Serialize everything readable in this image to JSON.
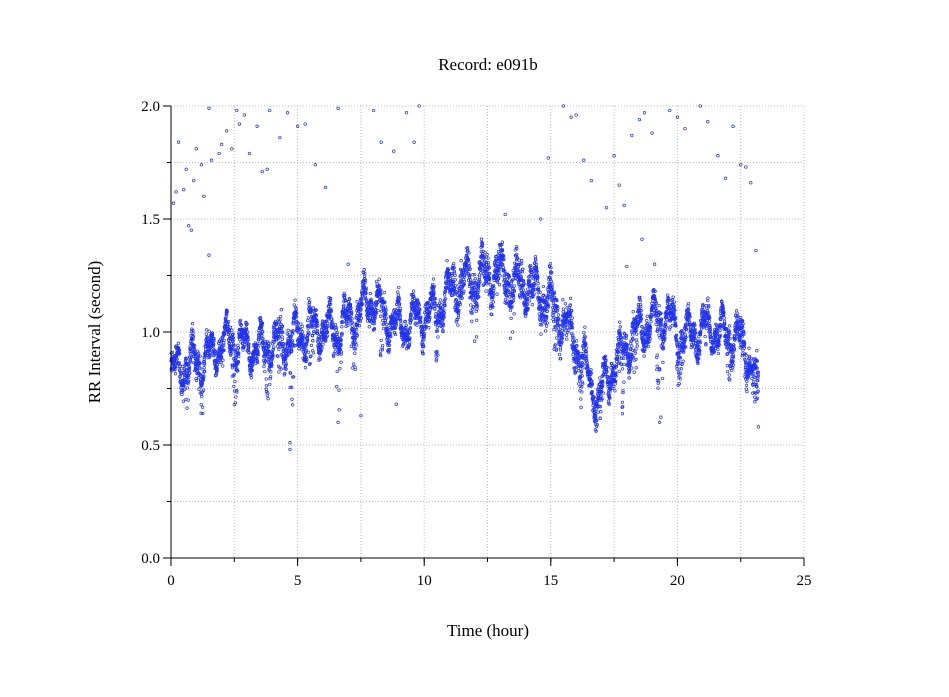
{
  "chart_data": {
    "type": "scatter",
    "title": "Record:  e091b",
    "xlabel": "Time (hour)",
    "ylabel": "RR Interval (second)",
    "xlim": [
      0,
      25
    ],
    "ylim": [
      0.0,
      2.0
    ],
    "x_ticks": [
      0,
      5,
      10,
      15,
      20,
      25
    ],
    "x_tick_labels": [
      "0",
      "5",
      "10",
      "15",
      "20",
      "25"
    ],
    "y_ticks": [
      0.0,
      0.5,
      1.0,
      1.5,
      2.0
    ],
    "y_tick_labels": [
      "0.0",
      "0.5",
      "1.0",
      "1.5",
      "2.0"
    ],
    "grid": true,
    "series_color": "#2233ee",
    "x_end": 23.2,
    "trend": [
      [
        0.0,
        0.82
      ],
      [
        0.5,
        0.85
      ],
      [
        1.0,
        0.87
      ],
      [
        1.5,
        0.89
      ],
      [
        2.0,
        0.95
      ],
      [
        2.5,
        0.97
      ],
      [
        3.0,
        0.92
      ],
      [
        3.5,
        0.93
      ],
      [
        4.0,
        0.95
      ],
      [
        4.5,
        0.97
      ],
      [
        5.0,
        0.99
      ],
      [
        5.5,
        1.01
      ],
      [
        6.0,
        1.02
      ],
      [
        6.5,
        1.0
      ],
      [
        7.0,
        1.05
      ],
      [
        7.5,
        1.1
      ],
      [
        8.0,
        1.15
      ],
      [
        8.5,
        1.07
      ],
      [
        9.0,
        1.02
      ],
      [
        9.5,
        1.05
      ],
      [
        10.0,
        1.07
      ],
      [
        10.5,
        1.1
      ],
      [
        11.0,
        1.18
      ],
      [
        11.5,
        1.22
      ],
      [
        12.0,
        1.24
      ],
      [
        12.5,
        1.25
      ],
      [
        13.0,
        1.26
      ],
      [
        13.5,
        1.23
      ],
      [
        14.0,
        1.2
      ],
      [
        14.5,
        1.17
      ],
      [
        15.0,
        1.13
      ],
      [
        15.5,
        1.05
      ],
      [
        16.0,
        0.95
      ],
      [
        16.5,
        0.8
      ],
      [
        16.9,
        0.7
      ],
      [
        17.2,
        0.8
      ],
      [
        17.5,
        0.85
      ],
      [
        18.0,
        0.95
      ],
      [
        18.5,
        1.02
      ],
      [
        19.0,
        1.05
      ],
      [
        19.5,
        1.08
      ],
      [
        20.0,
        1.0
      ],
      [
        20.5,
        0.98
      ],
      [
        21.0,
        1.02
      ],
      [
        21.5,
        1.0
      ],
      [
        22.0,
        0.99
      ],
      [
        22.5,
        0.97
      ],
      [
        23.0,
        0.85
      ],
      [
        23.2,
        0.72
      ]
    ],
    "dips": [
      [
        0.6,
        0.65
      ],
      [
        1.2,
        0.72
      ],
      [
        2.5,
        0.75
      ],
      [
        3.8,
        0.72
      ],
      [
        4.3,
        0.74
      ],
      [
        4.8,
        0.65
      ],
      [
        5.5,
        0.8
      ],
      [
        6.6,
        0.6
      ],
      [
        7.2,
        0.82
      ],
      [
        8.3,
        0.82
      ],
      [
        10.5,
        0.9
      ],
      [
        12.0,
        1.0
      ],
      [
        13.5,
        0.95
      ],
      [
        15.2,
        0.85
      ],
      [
        16.2,
        0.72
      ],
      [
        16.9,
        0.52
      ],
      [
        17.8,
        0.6
      ],
      [
        18.3,
        0.75
      ],
      [
        19.3,
        0.58
      ],
      [
        20.1,
        0.82
      ],
      [
        21.2,
        0.85
      ],
      [
        22.0,
        0.82
      ],
      [
        22.6,
        0.78
      ],
      [
        23.1,
        0.58
      ]
    ],
    "outliers": [
      [
        0.1,
        1.57
      ],
      [
        0.2,
        1.62
      ],
      [
        0.3,
        1.84
      ],
      [
        0.5,
        1.63
      ],
      [
        0.6,
        1.72
      ],
      [
        0.7,
        1.47
      ],
      [
        0.8,
        1.45
      ],
      [
        0.9,
        1.67
      ],
      [
        1.0,
        1.81
      ],
      [
        1.2,
        1.74
      ],
      [
        1.3,
        1.6
      ],
      [
        1.5,
        1.99
      ],
      [
        1.6,
        1.76
      ],
      [
        1.9,
        1.79
      ],
      [
        2.0,
        1.83
      ],
      [
        2.2,
        1.89
      ],
      [
        2.4,
        1.81
      ],
      [
        2.6,
        1.98
      ],
      [
        2.7,
        1.92
      ],
      [
        2.9,
        1.96
      ],
      [
        3.1,
        1.79
      ],
      [
        3.4,
        1.91
      ],
      [
        3.6,
        1.71
      ],
      [
        3.8,
        1.72
      ],
      [
        3.9,
        1.98
      ],
      [
        4.3,
        1.86
      ],
      [
        4.6,
        1.97
      ],
      [
        5.0,
        1.91
      ],
      [
        5.3,
        1.92
      ],
      [
        5.7,
        1.74
      ],
      [
        6.1,
        1.64
      ],
      [
        6.6,
        1.99
      ],
      [
        7.0,
        1.3
      ],
      [
        8.0,
        1.98
      ],
      [
        8.3,
        1.84
      ],
      [
        8.8,
        1.8
      ],
      [
        9.3,
        1.97
      ],
      [
        9.6,
        1.84
      ],
      [
        9.8,
        2.0
      ],
      [
        14.9,
        1.77
      ],
      [
        15.5,
        2.0
      ],
      [
        15.8,
        1.95
      ],
      [
        16.0,
        1.96
      ],
      [
        16.3,
        1.76
      ],
      [
        16.6,
        1.67
      ],
      [
        17.2,
        1.55
      ],
      [
        17.5,
        1.78
      ],
      [
        17.7,
        1.65
      ],
      [
        17.9,
        1.56
      ],
      [
        18.2,
        1.87
      ],
      [
        18.5,
        1.94
      ],
      [
        18.7,
        1.97
      ],
      [
        19.0,
        1.88
      ],
      [
        19.7,
        1.98
      ],
      [
        20.0,
        1.95
      ],
      [
        20.3,
        1.9
      ],
      [
        20.9,
        2.0
      ],
      [
        21.2,
        1.93
      ],
      [
        21.6,
        1.78
      ],
      [
        21.9,
        1.68
      ],
      [
        22.2,
        1.91
      ],
      [
        22.5,
        1.74
      ],
      [
        22.7,
        1.73
      ],
      [
        22.9,
        1.66
      ],
      [
        23.1,
        1.36
      ],
      [
        4.7,
        0.51
      ],
      [
        4.7,
        0.48
      ],
      [
        6.6,
        0.6
      ],
      [
        7.5,
        0.63
      ],
      [
        8.9,
        0.68
      ],
      [
        19.3,
        0.6
      ],
      [
        23.2,
        0.58
      ],
      [
        1.5,
        1.34
      ],
      [
        13.2,
        1.52
      ],
      [
        14.6,
        1.5
      ],
      [
        18.0,
        1.29
      ],
      [
        18.6,
        1.41
      ],
      [
        19.1,
        1.3
      ]
    ]
  }
}
